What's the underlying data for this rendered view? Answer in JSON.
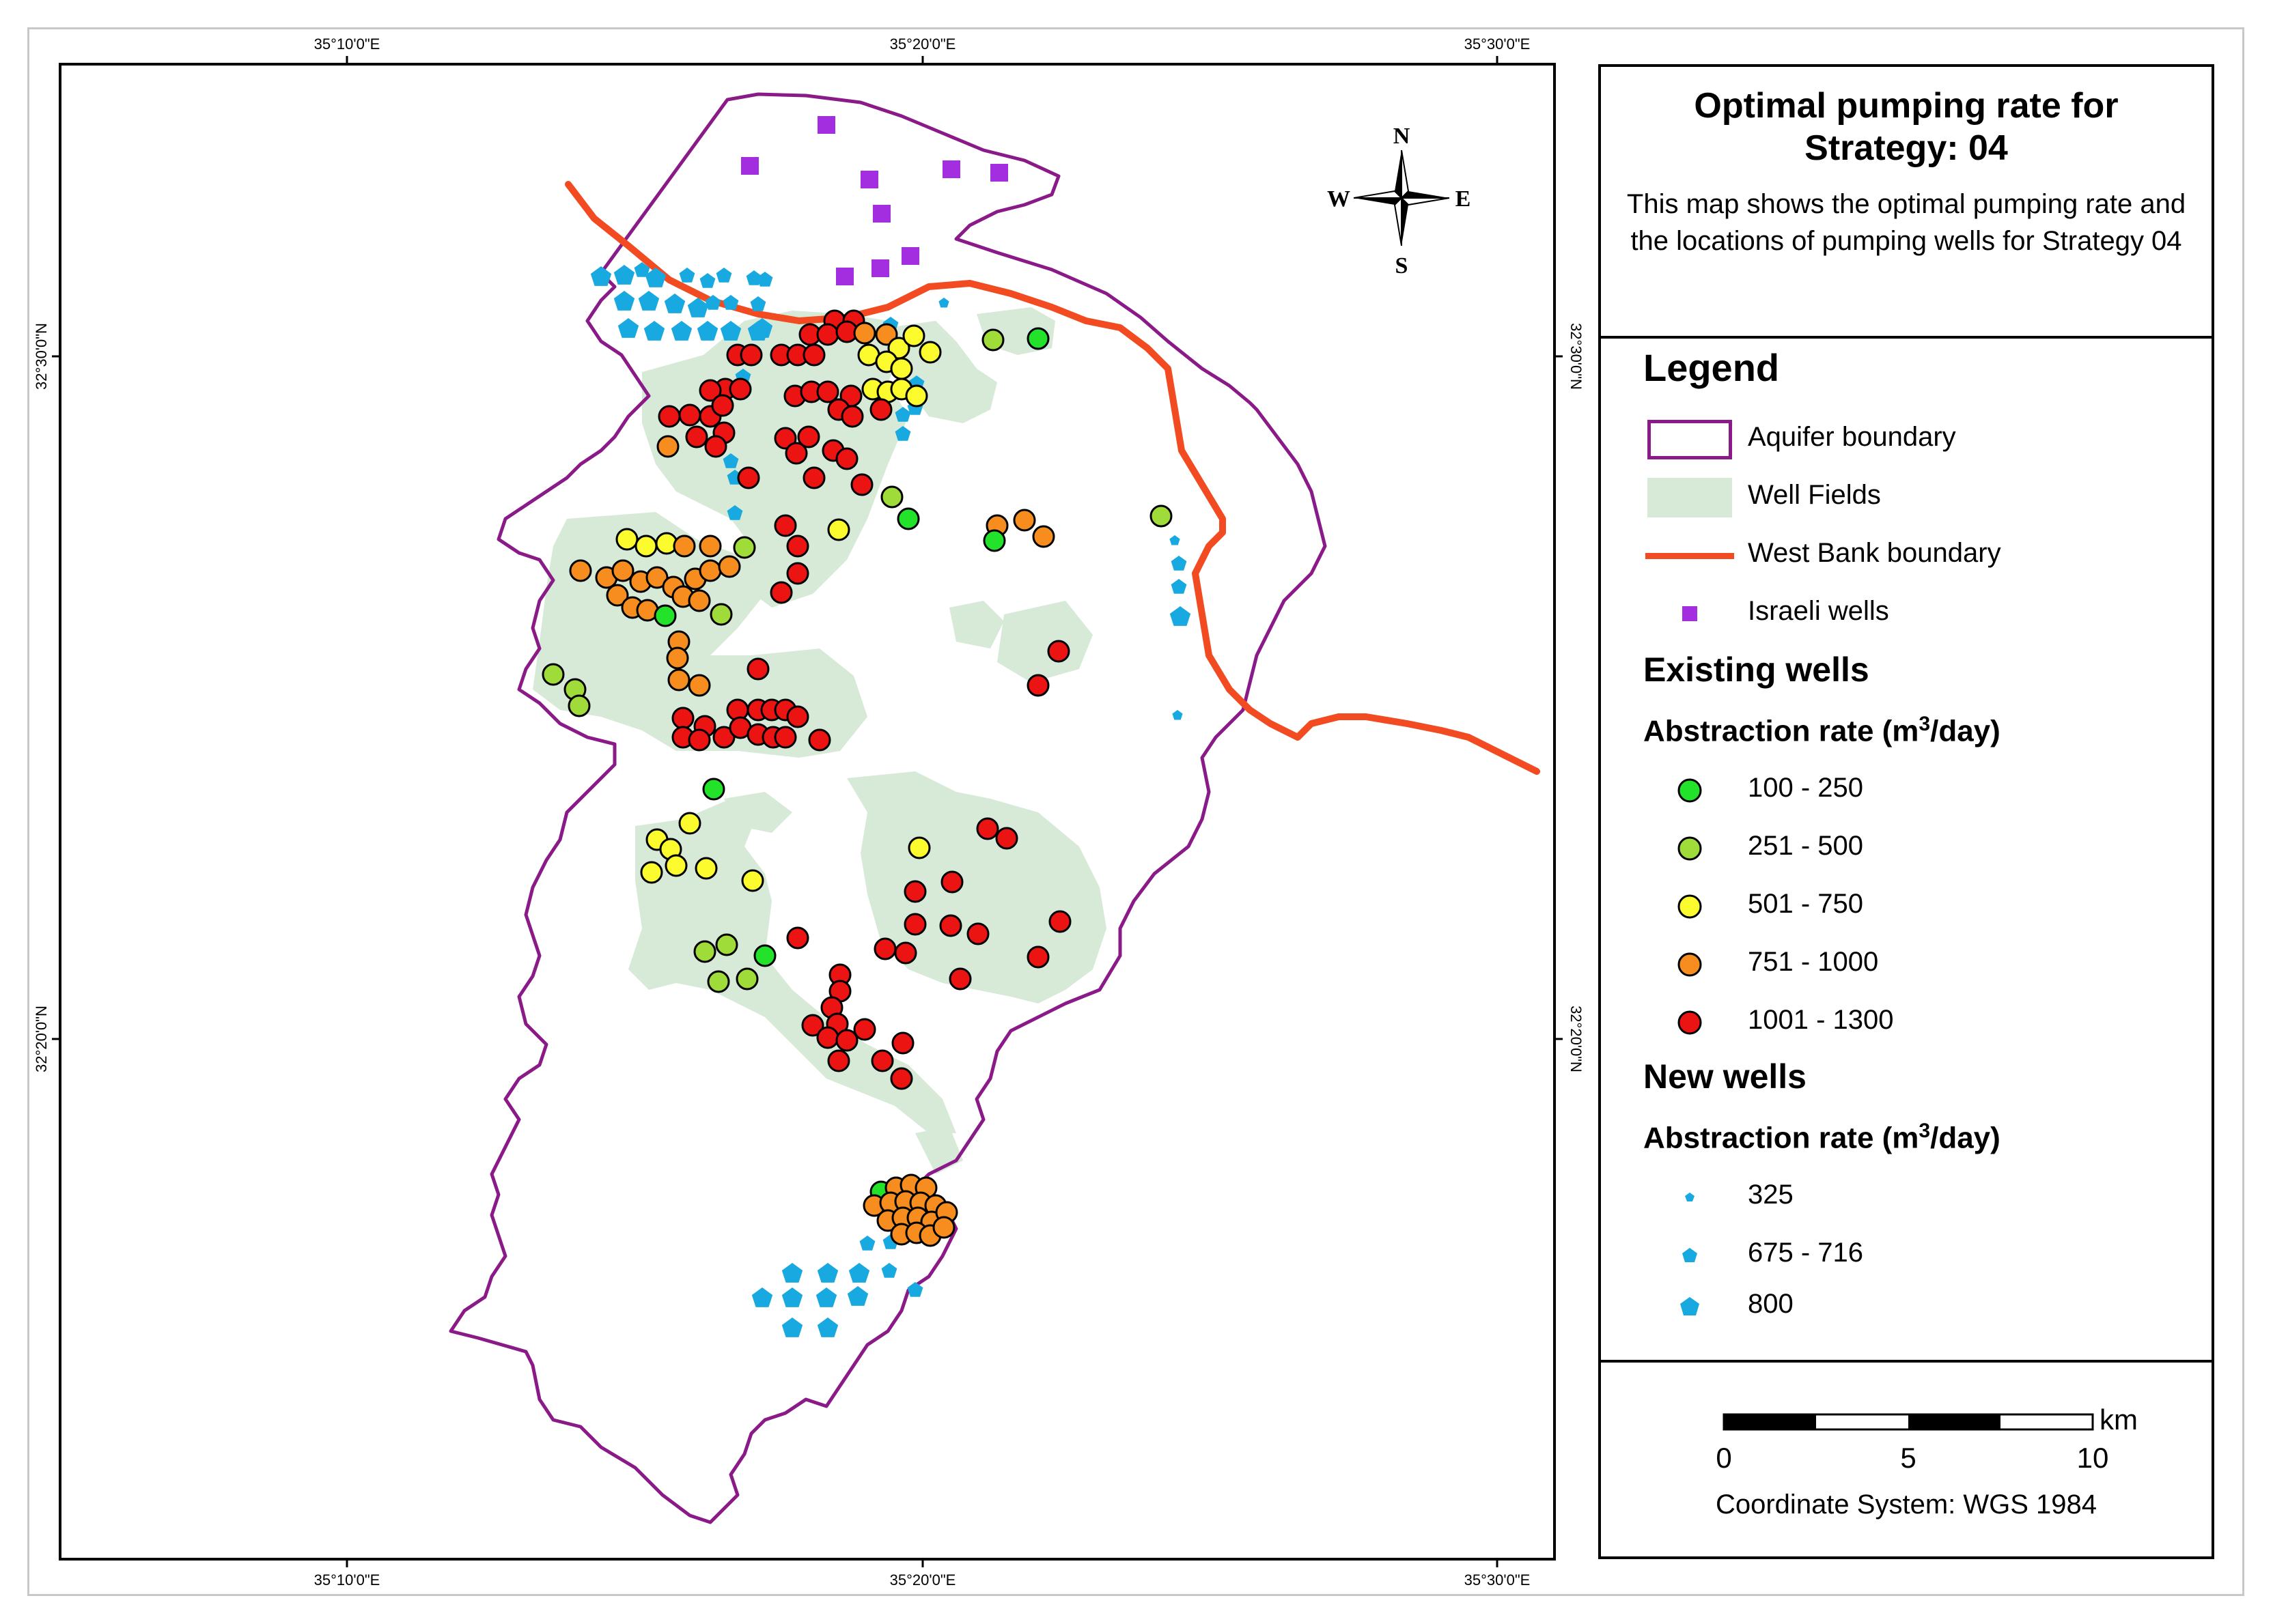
{
  "map": {
    "lon_ticks": [
      "35°10'0\"E",
      "35°20'0\"E",
      "35°30'0\"E"
    ],
    "lat_ticks": [
      "32°30'0\"N",
      "32°20'0\"N"
    ],
    "north_arrow": {
      "n": "N",
      "s": "S",
      "e": "E",
      "w": "W"
    },
    "colors": {
      "aquifer": "#8b1a89",
      "west_bank": "#f24a21",
      "well_fields": "#d7e9d7",
      "israeli_wells": "#a22ee0",
      "new_wells": "#18a9e0"
    }
  },
  "legend": {
    "title": "Optimal pumping rate for Strategy: 04",
    "description": "This map shows the optimal pumping rate and the locations of pumping wells for Strategy 04",
    "legend_heading": "Legend",
    "layers": [
      {
        "label": "Aquifer boundary",
        "symbol": "rect-outline"
      },
      {
        "label": "Well Fields",
        "symbol": "rect-fill"
      },
      {
        "label": "West Bank boundary",
        "symbol": "line"
      },
      {
        "label": "Israeli wells",
        "symbol": "square"
      }
    ],
    "existing_heading": "Existing wells",
    "abstraction_label": "Abstraction rate (m",
    "abstraction_sup": "3",
    "abstraction_tail": "/day)",
    "existing_classes": [
      {
        "label": "100 - 250",
        "color": "#22e22a"
      },
      {
        "label": "251 - 500",
        "color": "#9fdc3a"
      },
      {
        "label": "501 - 750",
        "color": "#fbfb2e"
      },
      {
        "label": "751 - 1000",
        "color": "#f78d1e"
      },
      {
        "label": "1001 - 1300",
        "color": "#ec1313"
      }
    ],
    "new_heading": "New wells",
    "new_classes": [
      {
        "label": "325",
        "size": "small"
      },
      {
        "label": "675 - 716",
        "size": "medium"
      },
      {
        "label": "800",
        "size": "large"
      }
    ]
  },
  "scale": {
    "ticks": [
      "0",
      "5",
      "10"
    ],
    "unit": "km",
    "coordinate_system": "Coordinate System: WGS 1984"
  }
}
